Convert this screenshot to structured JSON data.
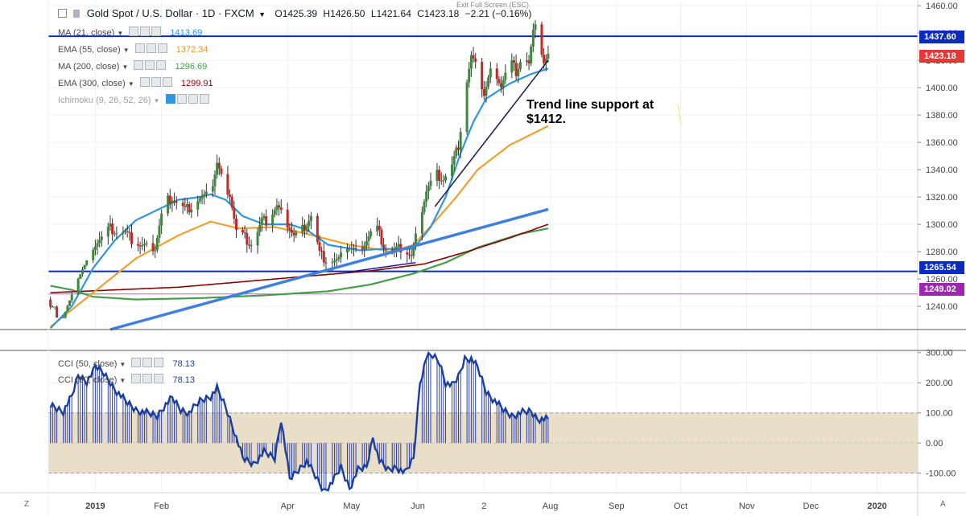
{
  "header": {
    "symbol_title": "Gold Spot / U.S. Dollar · 1D · FXCM",
    "open": "O1425.39",
    "high": "H1426.50",
    "low": "L1421.64",
    "close": "C1423.18",
    "change": "−2.21 (−0.16%)",
    "exit_fullscreen": "Exit Full Screen (ESC)"
  },
  "legend": [
    {
      "label": "MA (21, close)",
      "value": "1413.69",
      "color": "#2f96e0"
    },
    {
      "label": "EMA (55, close)",
      "value": "1372.34",
      "color": "#f0a030"
    },
    {
      "label": "MA (200, close)",
      "value": "1296.69",
      "color": "#43a047"
    },
    {
      "label": "EMA (300, close)",
      "value": "1299.91",
      "color": "#8b0000"
    },
    {
      "label": "Ichimoku (9, 26, 52, 26)",
      "value": "",
      "color": "#9e9e9e"
    }
  ],
  "cci_legend": [
    {
      "label": "CCI (50, close)",
      "value": "78.13",
      "color": "#1a3fa0"
    },
    {
      "label": "CCI (50, close)",
      "value": "78.13",
      "color": "#1a3fa0"
    }
  ],
  "annotation": {
    "line1": "Trend line support at",
    "line2": "$1412."
  },
  "price_marks": [
    {
      "label": "1437.60",
      "value": 1437.6,
      "color": "#0b2bbf"
    },
    {
      "label": "1423.18",
      "value": 1423.18,
      "color": "#e53935"
    },
    {
      "label": "1265.54",
      "value": 1265.54,
      "color": "#0b2bbf"
    },
    {
      "label": "1249.02",
      "value": 1249.02,
      "color": "#9c27b0"
    }
  ],
  "corner_labels": {
    "left": "Z",
    "right": "A"
  },
  "chart_data": [
    {
      "type": "candlestick",
      "title": "Gold Spot / U.S. Dollar · 1D · FXCM",
      "y_ticks": [
        "1460.00",
        "1440.00",
        "1420.00",
        "1400.00",
        "1380.00",
        "1360.00",
        "1340.00",
        "1320.00",
        "1300.00",
        "1280.00",
        "1260.00",
        "1240.00"
      ],
      "ylim": [
        1223,
        1463
      ],
      "x_ticks": [
        "2019",
        "Feb",
        "Apr",
        "May",
        "Jun",
        "2",
        "Aug",
        "Sep",
        "Oct",
        "Nov",
        "Dec",
        "2020"
      ],
      "x_tick_days": [
        1,
        32,
        91,
        121,
        152,
        183,
        214,
        245,
        275,
        306,
        336,
        367
      ],
      "xlim": [
        -21,
        386
      ],
      "ohlc_keypoints": [
        {
          "day": -20,
          "close": 1245
        },
        {
          "day": -14,
          "close": 1240
        },
        {
          "day": -10,
          "close": 1253
        },
        {
          "day": -7,
          "close": 1270
        },
        {
          "day": -3,
          "close": 1280
        },
        {
          "day": 2,
          "close": 1288
        },
        {
          "day": 8,
          "close": 1297
        },
        {
          "day": 15,
          "close": 1293
        },
        {
          "day": 22,
          "close": 1284
        },
        {
          "day": 29,
          "close": 1283
        },
        {
          "day": 33,
          "close": 1315
        },
        {
          "day": 37,
          "close": 1320
        },
        {
          "day": 43,
          "close": 1310
        },
        {
          "day": 49,
          "close": 1317
        },
        {
          "day": 55,
          "close": 1322
        },
        {
          "day": 58,
          "close": 1345
        },
        {
          "day": 61,
          "close": 1330
        },
        {
          "day": 64,
          "close": 1323
        },
        {
          "day": 67,
          "close": 1296
        },
        {
          "day": 71,
          "close": 1290
        },
        {
          "day": 75,
          "close": 1285
        },
        {
          "day": 79,
          "close": 1302
        },
        {
          "day": 82,
          "close": 1303
        },
        {
          "day": 86,
          "close": 1313
        },
        {
          "day": 90,
          "close": 1303
        },
        {
          "day": 94,
          "close": 1292
        },
        {
          "day": 98,
          "close": 1296
        },
        {
          "day": 102,
          "close": 1307
        },
        {
          "day": 106,
          "close": 1278
        },
        {
          "day": 111,
          "close": 1272
        },
        {
          "day": 115,
          "close": 1273
        },
        {
          "day": 119,
          "close": 1284
        },
        {
          "day": 123,
          "close": 1281
        },
        {
          "day": 127,
          "close": 1287
        },
        {
          "day": 132,
          "close": 1300
        },
        {
          "day": 136,
          "close": 1285
        },
        {
          "day": 140,
          "close": 1279
        },
        {
          "day": 144,
          "close": 1283
        },
        {
          "day": 149,
          "close": 1276
        },
        {
          "day": 153,
          "close": 1305
        },
        {
          "day": 156,
          "close": 1325
        },
        {
          "day": 160,
          "close": 1337
        },
        {
          "day": 164,
          "close": 1334
        },
        {
          "day": 168,
          "close": 1342
        },
        {
          "day": 171,
          "close": 1358
        },
        {
          "day": 174,
          "close": 1395
        },
        {
          "day": 177,
          "close": 1422
        },
        {
          "day": 180,
          "close": 1412
        },
        {
          "day": 183,
          "close": 1395
        },
        {
          "day": 187,
          "close": 1418
        },
        {
          "day": 191,
          "close": 1402
        },
        {
          "day": 195,
          "close": 1420
        },
        {
          "day": 198,
          "close": 1412
        },
        {
          "day": 201,
          "close": 1425
        },
        {
          "day": 204,
          "close": 1416
        },
        {
          "day": 207,
          "close": 1450
        },
        {
          "day": 209,
          "close": 1432
        },
        {
          "day": 211,
          "close": 1418
        },
        {
          "day": 213,
          "close": 1423
        }
      ],
      "indicators": {
        "MA21": [
          [
            -20,
            1224
          ],
          [
            -10,
            1240
          ],
          [
            0,
            1268
          ],
          [
            10,
            1288
          ],
          [
            20,
            1303
          ],
          [
            32,
            1312
          ],
          [
            40,
            1318
          ],
          [
            50,
            1320
          ],
          [
            55,
            1322
          ],
          [
            62,
            1318
          ],
          [
            70,
            1306
          ],
          [
            80,
            1300
          ],
          [
            92,
            1300
          ],
          [
            100,
            1296
          ],
          [
            110,
            1285
          ],
          [
            125,
            1281
          ],
          [
            135,
            1282
          ],
          [
            150,
            1282
          ],
          [
            158,
            1298
          ],
          [
            165,
            1320
          ],
          [
            172,
            1352
          ],
          [
            178,
            1375
          ],
          [
            184,
            1392
          ],
          [
            195,
            1403
          ],
          [
            205,
            1410
          ],
          [
            213,
            1414
          ]
        ],
        "EMA55": [
          [
            -20,
            1225
          ],
          [
            0,
            1250
          ],
          [
            20,
            1275
          ],
          [
            40,
            1292
          ],
          [
            55,
            1302
          ],
          [
            68,
            1297
          ],
          [
            85,
            1298
          ],
          [
            100,
            1293
          ],
          [
            120,
            1285
          ],
          [
            140,
            1280
          ],
          [
            150,
            1285
          ],
          [
            160,
            1302
          ],
          [
            170,
            1320
          ],
          [
            180,
            1340
          ],
          [
            195,
            1358
          ],
          [
            213,
            1372
          ]
        ],
        "MA200": [
          [
            -20,
            1255
          ],
          [
            -10,
            1252
          ],
          [
            0,
            1247
          ],
          [
            20,
            1245
          ],
          [
            50,
            1246
          ],
          [
            80,
            1248
          ],
          [
            110,
            1251
          ],
          [
            130,
            1256
          ],
          [
            150,
            1264
          ],
          [
            165,
            1272
          ],
          [
            180,
            1283
          ],
          [
            200,
            1293
          ],
          [
            213,
            1297
          ]
        ],
        "EMA300": [
          [
            -20,
            1250
          ],
          [
            10,
            1252
          ],
          [
            40,
            1254
          ],
          [
            70,
            1258
          ],
          [
            100,
            1262
          ],
          [
            130,
            1266
          ],
          [
            155,
            1271
          ],
          [
            175,
            1280
          ],
          [
            195,
            1290
          ],
          [
            213,
            1300
          ]
        ],
        "trend_long": [
          [
            8,
            1223
          ],
          [
            213,
            1311
          ]
        ],
        "trend_support": [
          [
            160,
            1313
          ],
          [
            213,
            1420
          ]
        ],
        "trend_short": [
          [
            119,
            1265
          ],
          [
            151,
            1272
          ]
        ]
      },
      "horizontal_levels": [
        1437.6,
        1265.54,
        1249.02
      ]
    },
    {
      "type": "bar",
      "title": "CCI (50, close)",
      "y_ticks": [
        "300.00",
        "200.00",
        "100.00",
        "0.00",
        "-100.00"
      ],
      "ylim": [
        -165,
        310
      ],
      "band": [
        -100,
        100
      ],
      "cci_keypoints": [
        [
          -20,
          150
        ],
        [
          -14,
          130
        ],
        [
          -10,
          180
        ],
        [
          -7,
          250
        ],
        [
          -3,
          230
        ],
        [
          0,
          260
        ],
        [
          5,
          230
        ],
        [
          10,
          180
        ],
        [
          15,
          140
        ],
        [
          20,
          110
        ],
        [
          25,
          100
        ],
        [
          30,
          90
        ],
        [
          33,
          120
        ],
        [
          37,
          150
        ],
        [
          41,
          110
        ],
        [
          45,
          100
        ],
        [
          50,
          140
        ],
        [
          55,
          155
        ],
        [
          58,
          180
        ],
        [
          62,
          120
        ],
        [
          66,
          40
        ],
        [
          70,
          -50
        ],
        [
          75,
          -70
        ],
        [
          80,
          -30
        ],
        [
          85,
          -50
        ],
        [
          88,
          80
        ],
        [
          92,
          -120
        ],
        [
          96,
          -90
        ],
        [
          100,
          -60
        ],
        [
          104,
          -110
        ],
        [
          108,
          -160
        ],
        [
          112,
          -130
        ],
        [
          116,
          -80
        ],
        [
          120,
          -150
        ],
        [
          124,
          -90
        ],
        [
          128,
          -80
        ],
        [
          131,
          20
        ],
        [
          134,
          -60
        ],
        [
          138,
          -90
        ],
        [
          142,
          -80
        ],
        [
          146,
          -100
        ],
        [
          150,
          -50
        ],
        [
          153,
          200
        ],
        [
          156,
          285
        ],
        [
          159,
          290
        ],
        [
          162,
          270
        ],
        [
          165,
          200
        ],
        [
          168,
          190
        ],
        [
          171,
          220
        ],
        [
          174,
          280
        ],
        [
          177,
          280
        ],
        [
          180,
          250
        ],
        [
          184,
          170
        ],
        [
          188,
          140
        ],
        [
          192,
          110
        ],
        [
          196,
          90
        ],
        [
          200,
          100
        ],
        [
          205,
          105
        ],
        [
          208,
          80
        ],
        [
          213,
          78
        ]
      ]
    }
  ]
}
